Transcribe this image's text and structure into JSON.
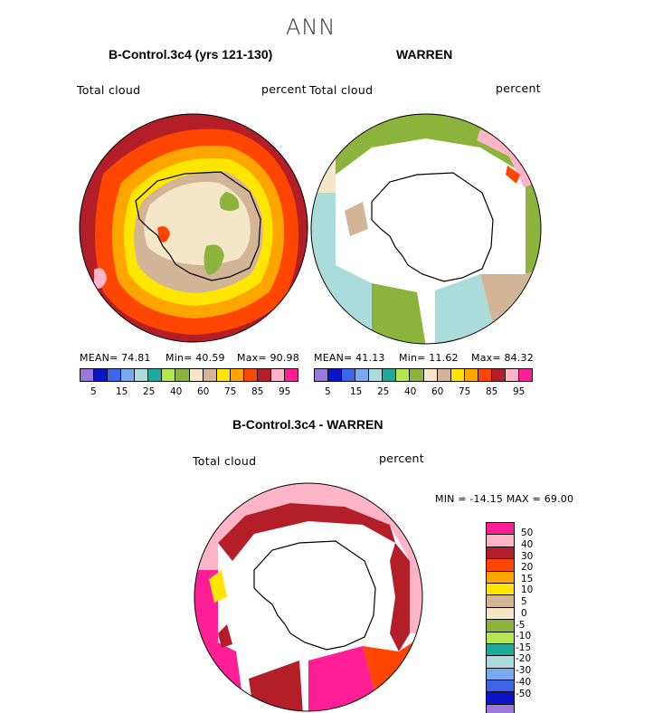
{
  "title": "ANN",
  "colors": {
    "levels": [
      "#9a78dc",
      "#0a14c8",
      "#3c64e6",
      "#78aaf0",
      "#1eaa9b",
      "#aadcdc",
      "#8cb43c",
      "#b4e650",
      "#f5e6c8",
      "#d2b496",
      "#ffe600",
      "#ffa500",
      "#ff4600",
      "#b41e28",
      "#ffb4c8",
      "#ff1e96"
    ],
    "land": "#ffffff",
    "coast": "#000000"
  },
  "panel1": {
    "title": "B-Control.3c4 (yrs 121-130)",
    "label_left": "Total cloud",
    "label_right": "percent",
    "mean_text": "MEAN=  74.81",
    "min_text": "Min=   40.59",
    "max_text": "Max=  90.98",
    "ticks": [
      "5",
      "15",
      "25",
      "40",
      "60",
      "75",
      "85",
      "95"
    ]
  },
  "panel2": {
    "title": "WARREN",
    "label_left": "Total cloud",
    "label_right": "percent",
    "mean_text": "MEAN=  41.13",
    "min_text": "Min=   11.62",
    "max_text": "Max=  84.32",
    "ticks": [
      "5",
      "15",
      "25",
      "40",
      "60",
      "75",
      "85",
      "95"
    ]
  },
  "panel3": {
    "title": "B-Control.3c4 - WARREN",
    "label_left": "Total cloud",
    "label_right": "percent",
    "minmax_text": "MIN = -14.15  MAX =   69.00",
    "ticks": [
      "50",
      "40",
      "30",
      "20",
      "15",
      "10",
      "5",
      "0",
      "-5",
      "-10",
      "-15",
      "-20",
      "-30",
      "-40",
      "-50"
    ]
  }
}
